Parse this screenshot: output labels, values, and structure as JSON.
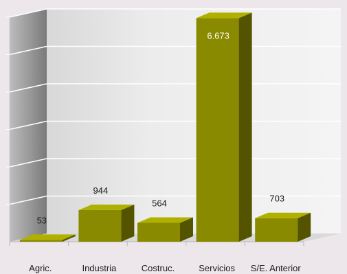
{
  "chart_data": {
    "type": "bar",
    "categories": [
      "Agric.",
      "Industria",
      "Costruc.",
      "Servicios",
      "S/E. Anterior"
    ],
    "values": [
      53,
      944,
      564,
      6673,
      703
    ],
    "value_labels": [
      "53",
      "944",
      "564",
      "6.673",
      "703"
    ],
    "ylim": [
      0,
      6700
    ],
    "grid": true,
    "legend": "none",
    "title": "",
    "xlabel": "",
    "ylabel": "",
    "colors": {
      "bar_front": "#8a8a00",
      "bar_top": "#b0b000",
      "bar_side": "#545400",
      "background": "#ede7eb",
      "wall_back": "#eaeaea",
      "wall_left": "#8e8e8e",
      "gridline": "#ffffff",
      "floor": "#d9d9d9",
      "label_on_bar": "#ffffff",
      "label": "#1a1a1a"
    }
  }
}
